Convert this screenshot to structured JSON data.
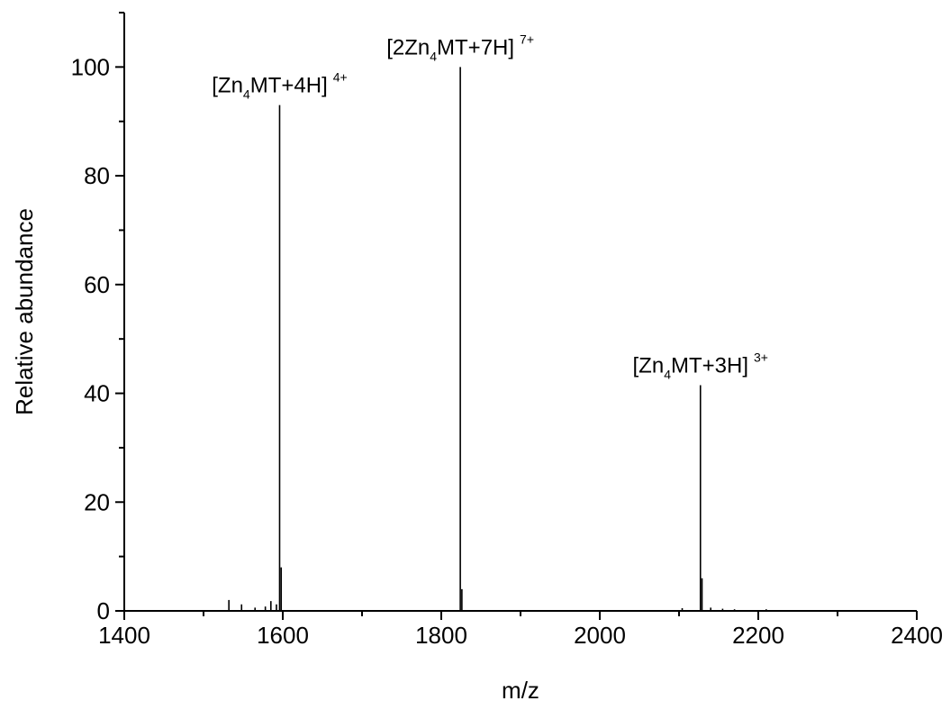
{
  "chart_data": {
    "type": "line",
    "xlabel": "m/z",
    "ylabel": "Relative abundance",
    "xlim": [
      1400,
      2400
    ],
    "ylim": [
      0,
      110
    ],
    "x_ticks": [
      1400,
      1600,
      1800,
      2000,
      2200,
      2400
    ],
    "y_ticks": [
      0,
      20,
      40,
      60,
      80,
      100
    ],
    "x_tick_labels": [
      "1400",
      "1600",
      "1800",
      "2000",
      "2200",
      "2400"
    ],
    "y_tick_labels": [
      "0",
      "20",
      "40",
      "60",
      "80",
      "100"
    ],
    "grid": false,
    "line_color": "#000000",
    "peaks": [
      {
        "x": 1532,
        "y": 2.0
      },
      {
        "x": 1548,
        "y": 1.2
      },
      {
        "x": 1565,
        "y": 0.6
      },
      {
        "x": 1578,
        "y": 0.8
      },
      {
        "x": 1585,
        "y": 1.8
      },
      {
        "x": 1592,
        "y": 1.2
      },
      {
        "x": 1596,
        "y": 93.0
      },
      {
        "x": 1598,
        "y": 8.0
      },
      {
        "x": 1824,
        "y": 100.0
      },
      {
        "x": 1826,
        "y": 4.0
      },
      {
        "x": 2104,
        "y": 0.5
      },
      {
        "x": 2127,
        "y": 41.5
      },
      {
        "x": 2129,
        "y": 6.0
      },
      {
        "x": 2140,
        "y": 0.6
      },
      {
        "x": 2155,
        "y": 0.4
      },
      {
        "x": 2170,
        "y": 0.3
      },
      {
        "x": 2210,
        "y": 0.3
      }
    ],
    "annotations": [
      {
        "base": "[Zn",
        "sub": "4",
        "rest": "MT+4H]",
        "sup": "4+",
        "x": 1596,
        "y": 93.0
      },
      {
        "base": "[2Zn",
        "sub": "4",
        "rest": "MT+7H]",
        "sup": "7+",
        "x": 1824,
        "y": 100.0
      },
      {
        "base": "[Zn",
        "sub": "4",
        "rest": "MT+3H]",
        "sup": "3+",
        "x": 2127,
        "y": 41.5
      }
    ]
  }
}
